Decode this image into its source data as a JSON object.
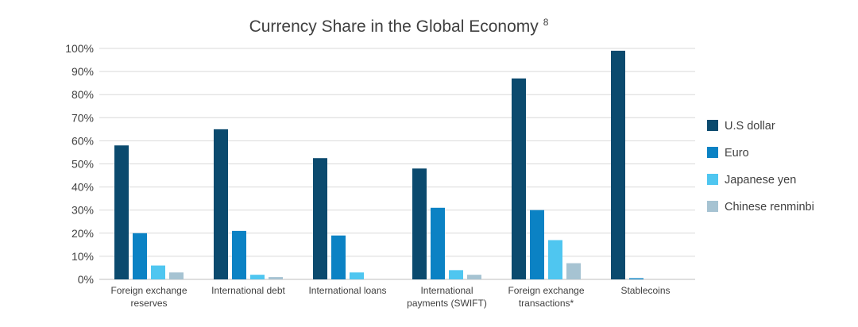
{
  "chart_data": {
    "type": "bar",
    "title": "Currency Share in the Global Economy",
    "title_superscript": "8",
    "xlabel": "",
    "ylabel": "",
    "ylim": [
      0,
      100
    ],
    "y_ticks": [
      "0%",
      "10%",
      "20%",
      "30%",
      "40%",
      "50%",
      "60%",
      "70%",
      "80%",
      "90%",
      "100%"
    ],
    "categories": [
      [
        "Foreign exchange",
        "reserves"
      ],
      [
        "International debt"
      ],
      [
        "International loans"
      ],
      [
        "International",
        "payments (SWIFT)"
      ],
      [
        "Foreign exchange",
        "transactions*"
      ],
      [
        "Stablecoins"
      ]
    ],
    "series": [
      {
        "name": "U.S dollar",
        "color": "#0b4a6e",
        "values": [
          58,
          65,
          52.5,
          48,
          87,
          99
        ]
      },
      {
        "name": "Euro",
        "color": "#0b82c4",
        "values": [
          20,
          21,
          19,
          31,
          30,
          0.5
        ]
      },
      {
        "name": "Japanese yen",
        "color": "#4fc6f0",
        "values": [
          6,
          2,
          3,
          4,
          17,
          0
        ]
      },
      {
        "name": "Chinese renminbi",
        "color": "#a6c3d2",
        "values": [
          3,
          1,
          0,
          2,
          7,
          0
        ]
      }
    ],
    "grid": true,
    "legend_position": "right"
  }
}
